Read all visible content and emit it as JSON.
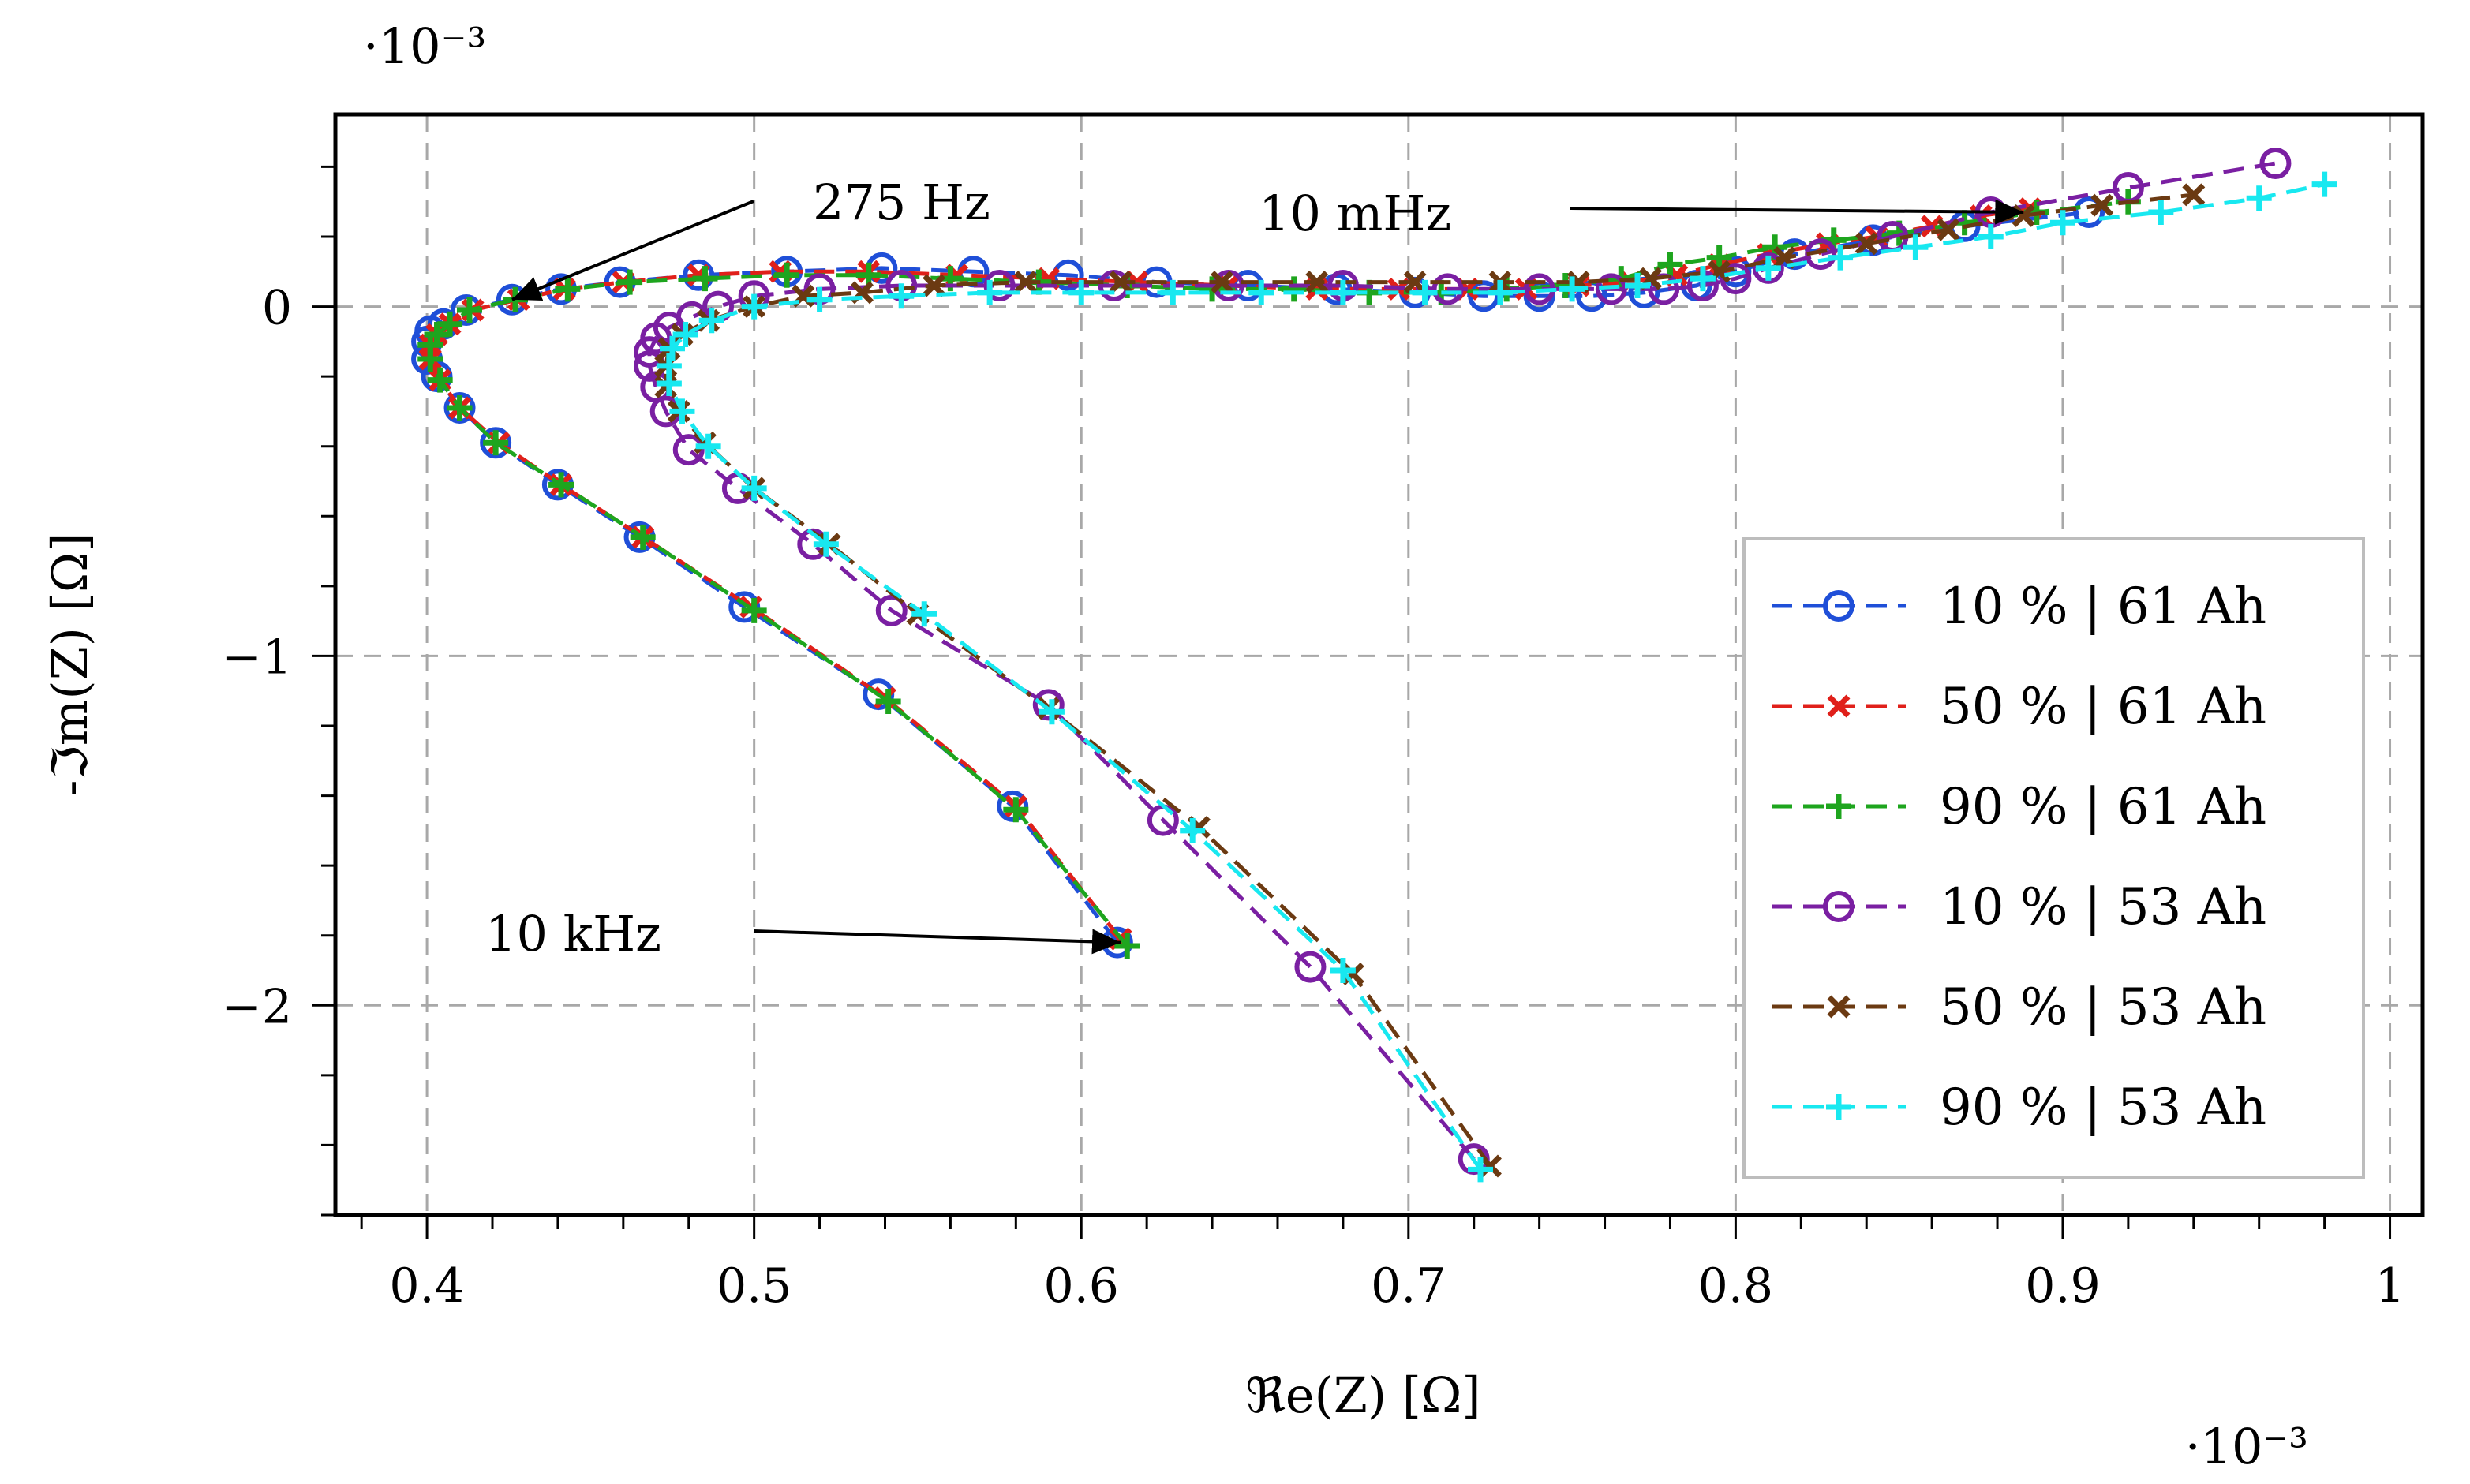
{
  "chart_data": {
    "type": "line",
    "xlabel": "ℜe(Z) [Ω]",
    "ylabel": "-ℑm(Z) [Ω]",
    "x_multiplier": "·10⁻³",
    "y_multiplier": "·10⁻³",
    "xlim": [
      0.372,
      1.01
    ],
    "ylim": [
      -2.6,
      0.55
    ],
    "x_ticks": [
      0.4,
      0.5,
      0.6,
      0.7,
      0.8,
      0.9,
      1.0
    ],
    "x_tick_labels": [
      "0.4",
      "0.5",
      "0.6",
      "0.7",
      "0.8",
      "0.9",
      "1"
    ],
    "y_ticks": [
      -2,
      -1,
      0
    ],
    "y_tick_labels": [
      "−2",
      "−1",
      "0"
    ],
    "grid": true,
    "legend_position": "lower-right",
    "annotations": [
      {
        "text": "275 Hz",
        "target": [
          0.426,
          0.02
        ]
      },
      {
        "text": "10 mHz",
        "target": [
          0.888,
          0.27
        ]
      },
      {
        "text": "10 kHz",
        "target": [
          0.612,
          -1.82
        ]
      }
    ],
    "series": [
      {
        "name": "10 % | 61 Ah",
        "color": "#1f4fd8",
        "marker": "circle",
        "x": [
          0.611,
          0.579,
          0.538,
          0.497,
          0.465,
          0.44,
          0.421,
          0.41,
          0.403,
          0.4,
          0.4,
          0.401,
          0.405,
          0.412,
          0.426,
          0.441,
          0.459,
          0.483,
          0.51,
          0.539,
          0.567,
          0.596,
          0.623,
          0.651,
          0.678,
          0.702,
          0.723,
          0.74,
          0.756,
          0.772,
          0.788,
          0.8,
          0.818,
          0.842,
          0.87,
          0.908
        ],
        "y": [
          -1.82,
          -1.43,
          -1.11,
          -0.86,
          -0.66,
          -0.51,
          -0.39,
          -0.29,
          -0.2,
          -0.15,
          -0.1,
          -0.07,
          -0.05,
          -0.01,
          0.02,
          0.05,
          0.07,
          0.09,
          0.1,
          0.11,
          0.1,
          0.09,
          0.07,
          0.06,
          0.05,
          0.04,
          0.03,
          0.03,
          0.03,
          0.04,
          0.06,
          0.1,
          0.15,
          0.19,
          0.23,
          0.27
        ]
      },
      {
        "name": "50 % | 61 Ah",
        "color": "#e0201a",
        "marker": "x",
        "x": [
          0.612,
          0.58,
          0.54,
          0.499,
          0.466,
          0.441,
          0.422,
          0.41,
          0.404,
          0.401,
          0.401,
          0.403,
          0.407,
          0.414,
          0.428,
          0.442,
          0.46,
          0.483,
          0.508,
          0.535,
          0.562,
          0.59,
          0.617,
          0.645,
          0.672,
          0.697,
          0.718,
          0.736,
          0.752,
          0.768,
          0.782,
          0.795,
          0.81,
          0.828,
          0.843,
          0.86,
          0.875,
          0.89
        ],
        "y": [
          -1.81,
          -1.43,
          -1.12,
          -0.86,
          -0.66,
          -0.51,
          -0.39,
          -0.29,
          -0.21,
          -0.15,
          -0.11,
          -0.08,
          -0.05,
          -0.01,
          0.02,
          0.05,
          0.07,
          0.09,
          0.1,
          0.1,
          0.09,
          0.08,
          0.07,
          0.06,
          0.05,
          0.05,
          0.05,
          0.05,
          0.06,
          0.07,
          0.09,
          0.12,
          0.15,
          0.18,
          0.2,
          0.23,
          0.26,
          0.28
        ]
      },
      {
        "name": "90 % | 61 Ah",
        "color": "#1ea51e",
        "marker": "plus",
        "x": [
          0.614,
          0.58,
          0.541,
          0.5,
          0.466,
          0.441,
          0.421,
          0.41,
          0.404,
          0.401,
          0.401,
          0.403,
          0.407,
          0.413,
          0.427,
          0.443,
          0.462,
          0.485,
          0.51,
          0.535,
          0.56,
          0.587,
          0.614,
          0.64,
          0.665,
          0.688,
          0.71,
          0.73,
          0.748,
          0.765,
          0.78,
          0.795,
          0.812,
          0.83,
          0.85,
          0.87,
          0.892,
          0.92
        ],
        "y": [
          -1.83,
          -1.44,
          -1.13,
          -0.87,
          -0.66,
          -0.51,
          -0.39,
          -0.29,
          -0.21,
          -0.15,
          -0.11,
          -0.08,
          -0.05,
          -0.01,
          0.02,
          0.05,
          0.07,
          0.08,
          0.09,
          0.09,
          0.08,
          0.07,
          0.06,
          0.05,
          0.05,
          0.04,
          0.04,
          0.05,
          0.06,
          0.08,
          0.12,
          0.14,
          0.17,
          0.19,
          0.21,
          0.24,
          0.27,
          0.3
        ]
      },
      {
        "name": "10 % | 53 Ah",
        "color": "#7a1fa2",
        "marker": "circle",
        "x": [
          0.72,
          0.67,
          0.625,
          0.59,
          0.542,
          0.518,
          0.495,
          0.48,
          0.473,
          0.47,
          0.468,
          0.468,
          0.47,
          0.474,
          0.481,
          0.489,
          0.5,
          0.52,
          0.545,
          0.575,
          0.61,
          0.645,
          0.68,
          0.712,
          0.74,
          0.762,
          0.778,
          0.79,
          0.8,
          0.81,
          0.826,
          0.848,
          0.878,
          0.92,
          0.965
        ],
        "y": [
          -2.44,
          -1.89,
          -1.47,
          -1.14,
          -0.87,
          -0.68,
          -0.52,
          -0.41,
          -0.3,
          -0.23,
          -0.17,
          -0.13,
          -0.09,
          -0.06,
          -0.03,
          0.0,
          0.03,
          0.05,
          0.06,
          0.06,
          0.06,
          0.06,
          0.06,
          0.05,
          0.05,
          0.05,
          0.05,
          0.06,
          0.08,
          0.11,
          0.15,
          0.2,
          0.27,
          0.34,
          0.41
        ]
      },
      {
        "name": "50 % | 53 Ah",
        "color": "#6b3a12",
        "marker": "x",
        "x": [
          0.725,
          0.683,
          0.636,
          0.59,
          0.55,
          0.523,
          0.5,
          0.485,
          0.477,
          0.473,
          0.473,
          0.474,
          0.478,
          0.486,
          0.5,
          0.515,
          0.533,
          0.555,
          0.583,
          0.612,
          0.643,
          0.672,
          0.702,
          0.728,
          0.752,
          0.774,
          0.795,
          0.815,
          0.84,
          0.865,
          0.888,
          0.912,
          0.94
        ],
        "y": [
          -2.46,
          -1.91,
          -1.49,
          -1.15,
          -0.88,
          -0.68,
          -0.52,
          -0.39,
          -0.3,
          -0.23,
          -0.17,
          -0.12,
          -0.08,
          -0.04,
          0.0,
          0.03,
          0.04,
          0.06,
          0.07,
          0.07,
          0.07,
          0.07,
          0.07,
          0.07,
          0.07,
          0.08,
          0.1,
          0.14,
          0.18,
          0.22,
          0.26,
          0.29,
          0.32
        ]
      },
      {
        "name": "90 % | 53 Ah",
        "color": "#18e8f0",
        "marker": "plus",
        "x": [
          0.722,
          0.68,
          0.634,
          0.591,
          0.552,
          0.522,
          0.5,
          0.486,
          0.478,
          0.474,
          0.474,
          0.475,
          0.479,
          0.487,
          0.5,
          0.52,
          0.545,
          0.572,
          0.6,
          0.628,
          0.655,
          0.68,
          0.705,
          0.728,
          0.75,
          0.77,
          0.79,
          0.81,
          0.832,
          0.855,
          0.878,
          0.9,
          0.93,
          0.96,
          0.98
        ],
        "y": [
          -2.47,
          -1.9,
          -1.5,
          -1.16,
          -0.88,
          -0.68,
          -0.52,
          -0.4,
          -0.3,
          -0.22,
          -0.17,
          -0.12,
          -0.08,
          -0.04,
          0.0,
          0.02,
          0.03,
          0.04,
          0.04,
          0.04,
          0.04,
          0.04,
          0.04,
          0.04,
          0.05,
          0.06,
          0.08,
          0.11,
          0.14,
          0.17,
          0.2,
          0.24,
          0.27,
          0.31,
          0.35
        ]
      }
    ]
  }
}
